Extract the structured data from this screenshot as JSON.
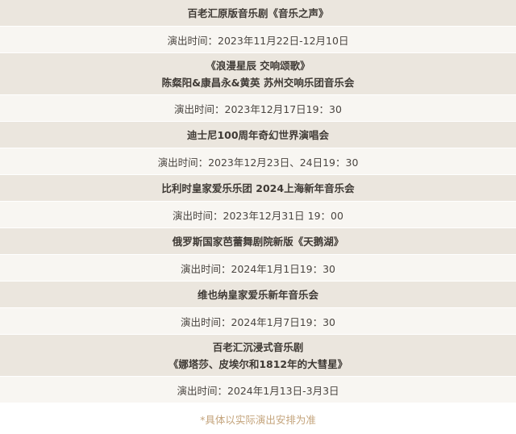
{
  "events": [
    {
      "title": [
        "百老汇原版音乐剧《音乐之声》"
      ],
      "date": "演出时间：2023年11月22日-12月10日"
    },
    {
      "title": [
        "《浪漫星辰 交响颂歌》",
        "陈粲阳&康昌永&黄英 苏州交响乐团音乐会"
      ],
      "date": "演出时间：2023年12月17日19：30"
    },
    {
      "title": [
        "迪士尼100周年奇幻世界演唱会"
      ],
      "date": "演出时间：2023年12月23日、24日19：30"
    },
    {
      "title": [
        "比利时皇家爱乐乐团 2024上海新年音乐会"
      ],
      "date": "演出时间：2023年12月31日 19：00"
    },
    {
      "title": [
        "俄罗斯国家芭蕾舞剧院新版《天鹅湖》"
      ],
      "date": "演出时间：2024年1月1日19：30"
    },
    {
      "title": [
        "维也纳皇家爱乐新年音乐会"
      ],
      "date": "演出时间：2024年1月7日19：30"
    },
    {
      "title": [
        "百老汇沉浸式音乐剧",
        "《娜塔莎、皮埃尔和1812年的大彗星》"
      ],
      "date": "演出时间：2024年1月13日-3月3日"
    }
  ],
  "footer_note": "*具体以实际演出安排为准",
  "colors": {
    "title_bg": "#ebe6de",
    "date_bg": "#f8f6f2",
    "note": "#c4a47c"
  }
}
